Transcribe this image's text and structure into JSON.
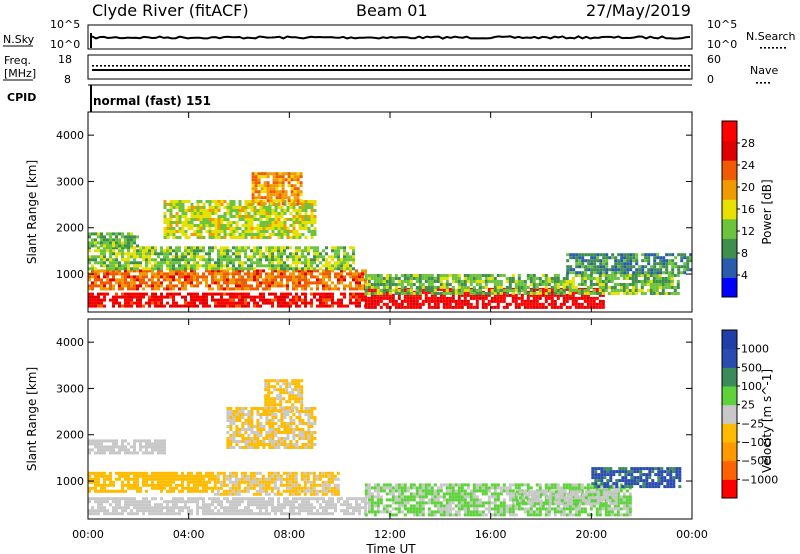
{
  "header": {
    "station": "Clyde River (fitACF)",
    "beam": "Beam 01",
    "date": "27/May/2019"
  },
  "noise_panel": {
    "left_label": "N.Sky",
    "right_label": "N.Search",
    "left_ticks": [
      "10^5",
      "10^0"
    ],
    "right_ticks": [
      "10^5",
      "10^0"
    ]
  },
  "freq_panel": {
    "left_label_line1": "Freq.",
    "left_label_line2": "[MHz]",
    "right_label": "Nave",
    "left_ticks": [
      "18",
      "8"
    ],
    "right_ticks": [
      "60",
      "0"
    ]
  },
  "cpid_panel": {
    "label": "CPID",
    "value": "normal (fast) 151"
  },
  "colors": {
    "power": [
      "#0000ff",
      "#2a5cae",
      "#3e8f4e",
      "#6cc33c",
      "#e8e000",
      "#f09a00",
      "#f05a00",
      "#e00000",
      "#ff0000"
    ],
    "velocity": [
      "#ff0000",
      "#ff6200",
      "#ff9900",
      "#ffbb00",
      "#c8c8c8",
      "#5ed23a",
      "#3a8a5a",
      "#2a4cb0",
      "#1f3ea8"
    ]
  },
  "chart_data": [
    {
      "type": "heatmap",
      "title": "",
      "xlabel": "",
      "ylabel": "Slant Range [km]",
      "xlim": [
        0,
        24
      ],
      "ylim": [
        180,
        4500
      ],
      "x_ticks": [
        0,
        4,
        8,
        12,
        16,
        20,
        24
      ],
      "x_tick_labels": [
        "00:00",
        "04:00",
        "08:00",
        "12:00",
        "16:00",
        "20:00",
        "00:00"
      ],
      "y_ticks": [
        1000,
        2000,
        3000,
        4000
      ],
      "y_tick_labels": [
        "1000",
        "2000",
        "3000",
        "4000"
      ],
      "colorbar": {
        "label": "Power [dB]",
        "ticks": [
          "4",
          "8",
          "12",
          "16",
          "20",
          "24",
          "28"
        ],
        "range": [
          0,
          32
        ]
      },
      "regions": [
        {
          "t": [
            0,
            11
          ],
          "r": [
            300,
            600
          ],
          "value": 28
        },
        {
          "t": [
            0,
            11
          ],
          "r": [
            700,
            1100
          ],
          "value": 22
        },
        {
          "t": [
            0,
            10.5
          ],
          "r": [
            1100,
            1600
          ],
          "value": 13
        },
        {
          "t": [
            0,
            2
          ],
          "r": [
            1600,
            1900
          ],
          "value": 11
        },
        {
          "t": [
            3,
            9
          ],
          "r": [
            1800,
            2600
          ],
          "value": 15
        },
        {
          "t": [
            6.5,
            8.5
          ],
          "r": [
            2500,
            3200
          ],
          "value": 20
        },
        {
          "t": [
            11,
            20.5
          ],
          "r": [
            280,
            700
          ],
          "value": 29
        },
        {
          "t": [
            11,
            23.5
          ],
          "r": [
            600,
            1000
          ],
          "value": 12
        },
        {
          "t": [
            19,
            24
          ],
          "r": [
            1000,
            1450
          ],
          "value": 8
        }
      ]
    },
    {
      "type": "heatmap",
      "title": "",
      "xlabel": "Time UT",
      "ylabel": "Slant Range [km]",
      "xlim": [
        0,
        24
      ],
      "ylim": [
        180,
        4500
      ],
      "x_ticks": [
        0,
        4,
        8,
        12,
        16,
        20,
        24
      ],
      "x_tick_labels": [
        "00:00",
        "04:00",
        "08:00",
        "12:00",
        "16:00",
        "20:00",
        "00:00"
      ],
      "y_ticks": [
        1000,
        2000,
        3000,
        4000
      ],
      "y_tick_labels": [
        "1000",
        "2000",
        "3000",
        "4000"
      ],
      "colorbar": {
        "label": "Velocity [m s^-1]",
        "ticks": [
          "−1000",
          "−500",
          "−100",
          "−25",
          "25",
          "100",
          "500",
          "1000"
        ],
        "range": [
          -1500,
          1500
        ]
      },
      "regions": [
        {
          "t": [
            0,
            11
          ],
          "r": [
            300,
            650
          ],
          "value": 25
        },
        {
          "t": [
            0,
            5
          ],
          "r": [
            750,
            1200
          ],
          "value": -350
        },
        {
          "t": [
            5,
            10
          ],
          "r": [
            700,
            1200
          ],
          "value": -200
        },
        {
          "t": [
            0,
            3
          ],
          "r": [
            1600,
            1900
          ],
          "value": 0
        },
        {
          "t": [
            5.5,
            9
          ],
          "r": [
            1700,
            2600
          ],
          "value": -180
        },
        {
          "t": [
            7,
            8.5
          ],
          "r": [
            2500,
            3200
          ],
          "value": -220
        },
        {
          "t": [
            11,
            21.5
          ],
          "r": [
            280,
            950
          ],
          "value": 200
        },
        {
          "t": [
            17,
            21
          ],
          "r": [
            500,
            800
          ],
          "value": 100
        },
        {
          "t": [
            20,
            23.5
          ],
          "r": [
            900,
            1300
          ],
          "value": 900
        }
      ]
    }
  ]
}
